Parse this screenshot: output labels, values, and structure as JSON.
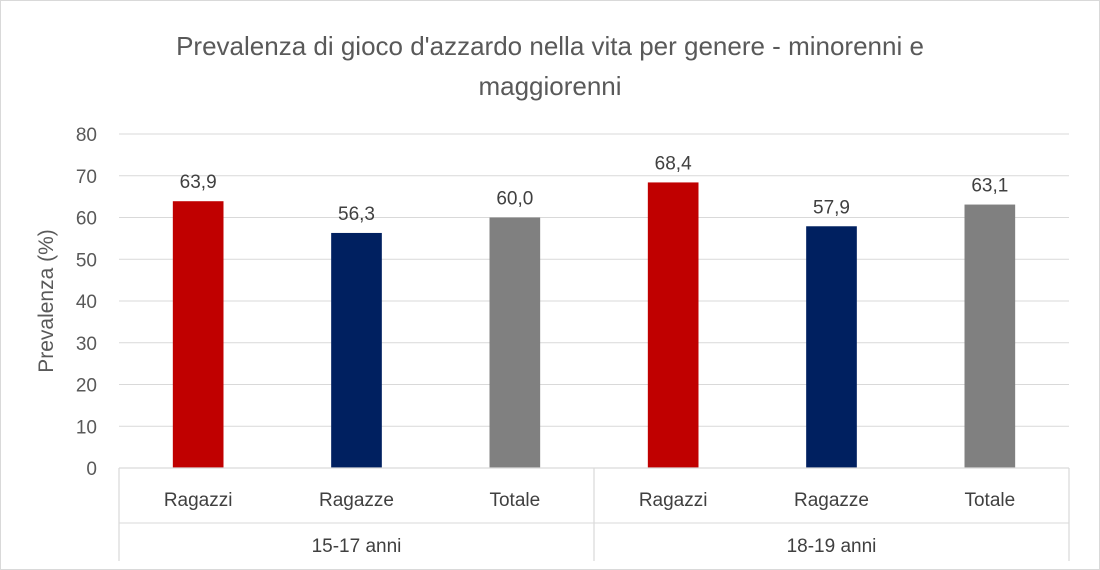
{
  "chart_data": {
    "type": "bar",
    "title_lines": [
      "Prevalenza di gioco d'azzardo nella vita per genere - minorenni e",
      "maggiorenni"
    ],
    "ylabel": "Prevalenza (%)",
    "xlabel": "",
    "ylim": [
      0,
      80
    ],
    "y_ticks": [
      "0",
      "10",
      "20",
      "30",
      "40",
      "50",
      "60",
      "70",
      "80"
    ],
    "grid": true,
    "legend": "none",
    "groups": [
      {
        "label": "15-17 anni",
        "bars": [
          {
            "category": "Ragazzi",
            "value": 63.9,
            "label": "63,9",
            "color": "#C00000"
          },
          {
            "category": "Ragazze",
            "value": 56.3,
            "label": "56,3",
            "color": "#002060"
          },
          {
            "category": "Totale",
            "value": 60.0,
            "label": "60,0",
            "color": "#808080"
          }
        ]
      },
      {
        "label": "18-19 anni",
        "bars": [
          {
            "category": "Ragazzi",
            "value": 68.4,
            "label": "68,4",
            "color": "#C00000"
          },
          {
            "category": "Ragazze",
            "value": 57.9,
            "label": "57,9",
            "color": "#002060"
          },
          {
            "category": "Totale",
            "value": 63.1,
            "label": "63,1",
            "color": "#808080"
          }
        ]
      }
    ]
  }
}
